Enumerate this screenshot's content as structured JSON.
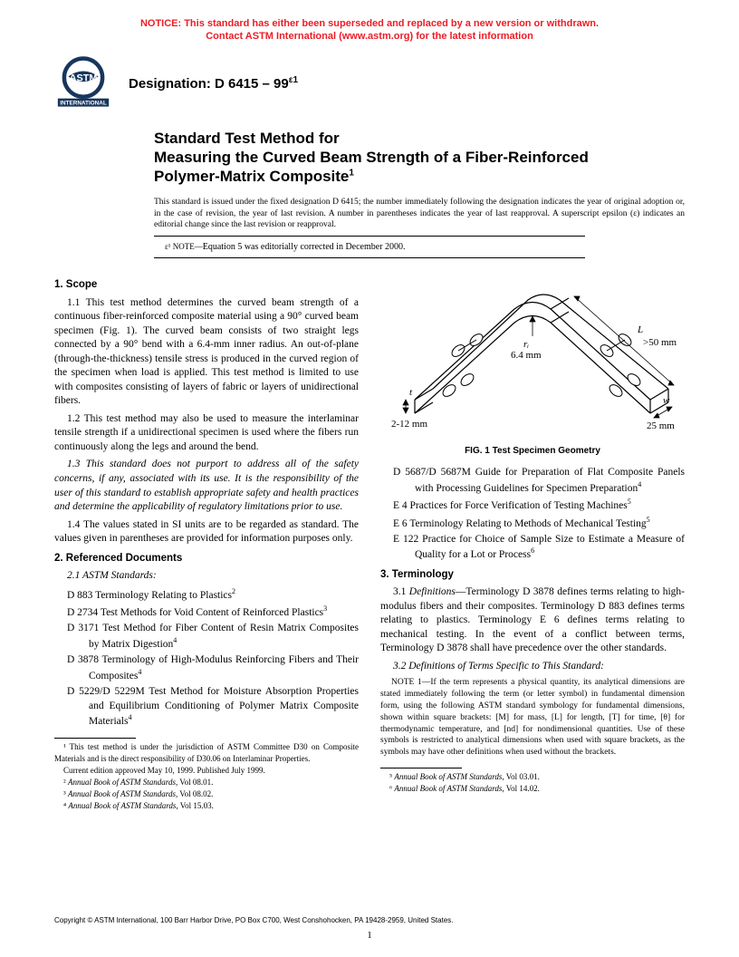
{
  "notice": {
    "line1": "NOTICE: This standard has either been superseded and replaced by a new version or withdrawn.",
    "line2": "Contact ASTM International (www.astm.org) for the latest information",
    "color": "#ee1c25"
  },
  "logo": {
    "top_text": "ASTM",
    "bottom_text": "INTERNATIONAL",
    "ink": "#17365d"
  },
  "designation": {
    "label": "Designation: D 6415 – 99",
    "super": "ε1"
  },
  "title": {
    "line1": "Standard Test Method for",
    "line2": "Measuring the Curved Beam Strength of a Fiber-Reinforced",
    "line3": "Polymer-Matrix Composite",
    "super": "1"
  },
  "issuance": "This standard is issued under the fixed designation D 6415; the number immediately following the designation indicates the year of original adoption or, in the case of revision, the year of last revision. A number in parentheses indicates the year of last reapproval. A superscript epsilon (ε) indicates an editorial change since the last revision or reapproval.",
  "epsilon_note": {
    "prefix": "ε¹ NOTE—",
    "text": "Equation 5 was editorially corrected in December 2000."
  },
  "left": {
    "sec1_title": "1. Scope",
    "p11": "1.1 This test method determines the curved beam strength of a continuous fiber-reinforced composite material using a 90° curved beam specimen (Fig. 1). The curved beam consists of two straight legs connected by a 90° bend with a 6.4-mm inner radius. An out-of-plane (through-the-thickness) tensile stress is produced in the curved region of the specimen when load is applied. This test method is limited to use with composites consisting of layers of fabric or layers of unidirectional fibers.",
    "p12": "1.2 This test method may also be used to measure the interlaminar tensile strength if a unidirectional specimen is used where the fibers run continuously along the legs and around the bend.",
    "p13": "1.3 This standard does not purport to address all of the safety concerns, if any, associated with its use. It is the responsibility of the user of this standard to establish appropriate safety and health practices and determine the applicability of regulatory limitations prior to use.",
    "p14": "1.4 The values stated in SI units are to be regarded as standard. The values given in parentheses are provided for information purposes only.",
    "sec2_title": "2. Referenced Documents",
    "p21": "2.1 ASTM Standards:",
    "refs": [
      {
        "text": "D 883  Terminology Relating to Plastics",
        "sup": "2"
      },
      {
        "text": "D 2734  Test Methods for Void Content of Reinforced Plastics",
        "sup": "3"
      },
      {
        "text": "D 3171  Test Method for Fiber Content of Resin Matrix Composites by Matrix Digestion",
        "sup": "4"
      },
      {
        "text": "D 3878  Terminology of High-Modulus Reinforcing Fibers and Their Composites",
        "sup": "4"
      },
      {
        "text": "D 5229/D 5229M  Test Method for Moisture Absorption Properties and Equilibrium Conditioning of Polymer Matrix Composite Materials",
        "sup": "4"
      }
    ],
    "fn1": "¹ This test method is under the jurisdiction of ASTM Committee D30 on Composite Materials and is the direct responsibility of D30.06 on Interlaminar Properties.",
    "fn1b": "Current edition approved May 10, 1999. Published July 1999.",
    "fn2": "² Annual Book of ASTM Standards, Vol 08.01.",
    "fn3": "³ Annual Book of ASTM Standards, Vol 08.02.",
    "fn4": "⁴ Annual Book of ASTM Standards, Vol 15.03."
  },
  "right": {
    "fig": {
      "caption": "FIG. 1 Test Specimen Geometry",
      "ri_label": "rᵢ",
      "ri_val": "6.4 mm",
      "t_label": "t",
      "t_val": "2-12 mm",
      "L_label": "L",
      "L_val": ">50 mm",
      "w_label": "w",
      "w_val": "25 mm"
    },
    "refs": [
      {
        "text": "D 5687/D 5687M  Guide for Preparation of Flat Composite Panels with Processing Guidelines for Specimen Preparation",
        "sup": "4"
      },
      {
        "text": "E 4  Practices for Force Verification of Testing Machines",
        "sup": "5"
      },
      {
        "text": "E 6  Terminology Relating to Methods of Mechanical Testing",
        "sup": "5"
      },
      {
        "text": "E 122  Practice for Choice of Sample Size to Estimate a Measure of Quality for a Lot or Process",
        "sup": "6"
      }
    ],
    "sec3_title": "3. Terminology",
    "p31": "3.1 Definitions—Terminology D 3878 defines terms relating to high-modulus fibers and their composites. Terminology D 883 defines terms relating to plastics. Terminology E 6 defines terms relating to mechanical testing. In the event of a conflict between terms, Terminology D 3878 shall have precedence over the other standards.",
    "p32": "3.2 Definitions of Terms Specific to This Standard:",
    "note1_label": "NOTE 1—",
    "note1": "If the term represents a physical quantity, its analytical dimensions are stated immediately following the term (or letter symbol) in fundamental dimension form, using the following ASTM standard symbology for fundamental dimensions, shown within square brackets: [M] for mass, [L] for length, [T] for time, [θ] for thermodynamic temperature, and [nd] for nondimensional quantities. Use of these symbols is restricted to analytical dimensions when used with square brackets, as the symbols may have other definitions when used without the brackets.",
    "fn5": "⁵ Annual Book of ASTM Standards, Vol 03.01.",
    "fn6": "⁶ Annual Book of ASTM Standards, Vol 14.02."
  },
  "copyright": "Copyright © ASTM International, 100 Barr Harbor Drive, PO Box C700, West Conshohocken, PA 19428-2959, United States.",
  "pagenum": "1"
}
